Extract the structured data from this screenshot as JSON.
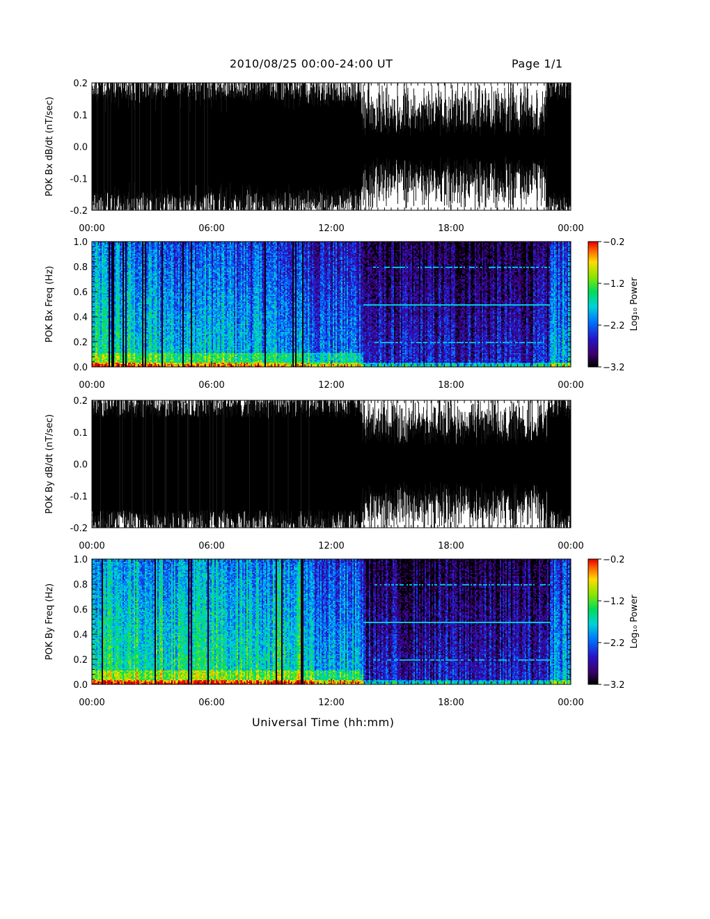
{
  "header": {
    "title": "2010/08/25  00:00-24:00 UT",
    "page": "Page 1/1"
  },
  "xlabel": "Universal Time (hh:mm)",
  "x_ticks": [
    "00:00",
    "06:00",
    "12:00",
    "18:00",
    "00:00"
  ],
  "chart_data": [
    {
      "type": "line",
      "ylabel": "POK Bx dB/dt (nT/sec)",
      "ylim": [
        -0.2,
        0.2
      ],
      "yticks": [
        "0.2",
        "0.1",
        "0.0",
        "-0.1",
        "-0.2"
      ],
      "x_range_hours": [
        0,
        24
      ],
      "series": [
        {
          "color": "#000000"
        }
      ]
    },
    {
      "type": "heatmap",
      "ylabel": "POK Bx Freq (Hz)",
      "ylim": [
        0.0,
        1.0
      ],
      "yticks": [
        "1.0",
        "0.8",
        "0.6",
        "0.4",
        "0.2",
        "0.0"
      ],
      "colorbar": {
        "label": "Log₁₀ Power",
        "ticks": [
          "-0.2",
          "-1.2",
          "-2.2",
          "-3.2"
        ],
        "range": [
          -3.2,
          -0.2
        ]
      }
    },
    {
      "type": "line",
      "ylabel": "POK By dB/dt (nT/sec)",
      "ylim": [
        -0.2,
        0.2
      ],
      "yticks": [
        "0.2",
        "0.1",
        "0.0",
        "-0.1",
        "-0.2"
      ],
      "x_range_hours": [
        0,
        24
      ],
      "series": [
        {
          "color": "#000000"
        }
      ]
    },
    {
      "type": "heatmap",
      "ylabel": "POK By Freq (Hz)",
      "ylim": [
        0.0,
        1.0
      ],
      "yticks": [
        "1.0",
        "0.8",
        "0.6",
        "0.4",
        "0.2",
        "0.0"
      ],
      "colorbar": {
        "label": "Log₁₀ Power",
        "ticks": [
          "-0.2",
          "-1.2",
          "-2.2",
          "-3.2"
        ],
        "range": [
          -3.2,
          -0.2
        ]
      }
    }
  ]
}
